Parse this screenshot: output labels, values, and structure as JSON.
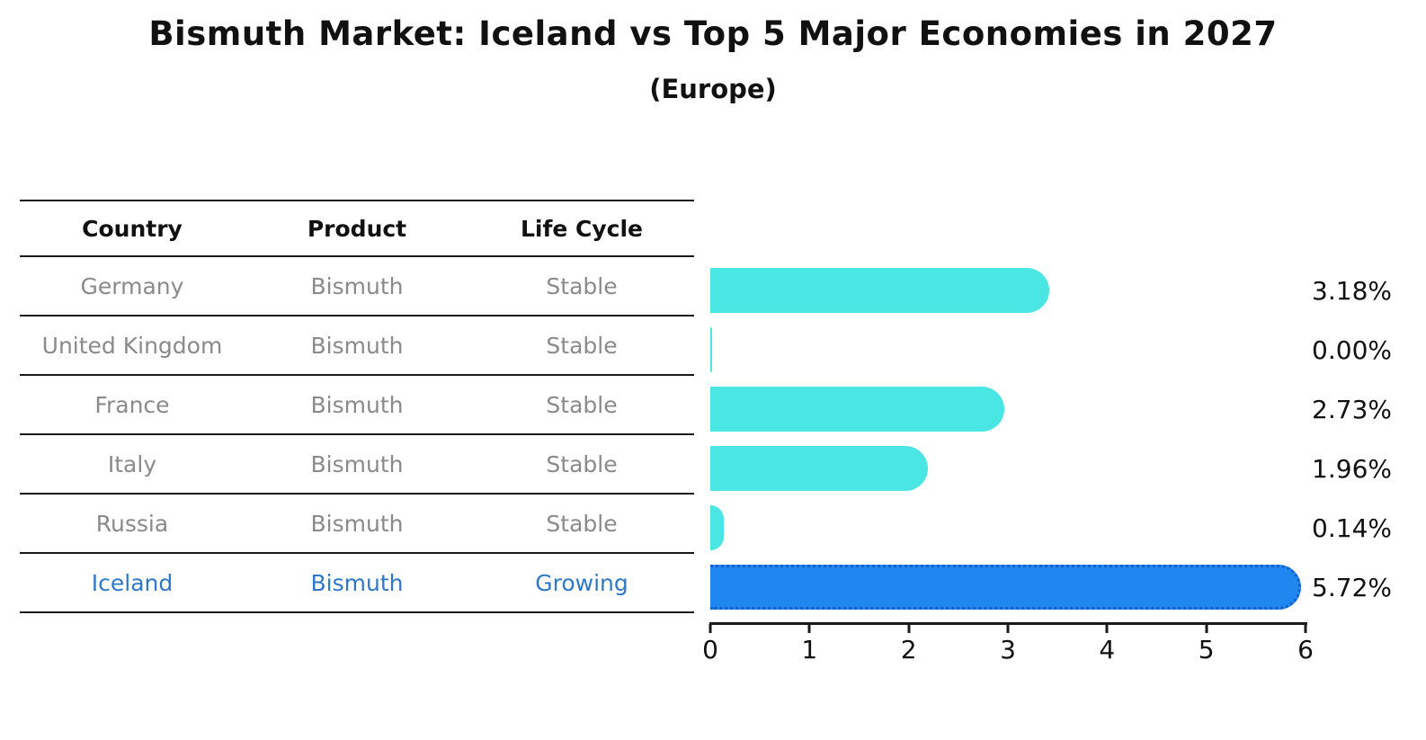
{
  "title": "Bismuth Market: Iceland vs Top 5 Major Economies in 2027",
  "subtitle": "(Europe)",
  "table": {
    "headers": [
      "Country",
      "Product",
      "Life Cycle"
    ],
    "rows": [
      {
        "country": "Germany",
        "product": "Bismuth",
        "life_cycle": "Stable",
        "highlight": false
      },
      {
        "country": "United Kingdom",
        "product": "Bismuth",
        "life_cycle": "Stable",
        "highlight": false
      },
      {
        "country": "France",
        "product": "Bismuth",
        "life_cycle": "Stable",
        "highlight": false
      },
      {
        "country": "Italy",
        "product": "Bismuth",
        "life_cycle": "Stable",
        "highlight": false
      },
      {
        "country": "Russia",
        "product": "Bismuth",
        "life_cycle": "Stable",
        "highlight": false
      },
      {
        "country": "Iceland",
        "product": "Bismuth",
        "life_cycle": "Growing",
        "highlight": true
      }
    ]
  },
  "chart_data": {
    "type": "bar",
    "orientation": "horizontal",
    "title": "Bismuth Market: Iceland vs Top 5 Major Economies in 2027",
    "subtitle": "(Europe)",
    "categories": [
      "Germany",
      "United Kingdom",
      "France",
      "Italy",
      "Russia",
      "Iceland"
    ],
    "values": [
      3.18,
      0.0,
      2.73,
      1.96,
      0.14,
      5.72
    ],
    "value_labels": [
      "3.18%",
      "0.00%",
      "2.73%",
      "1.96%",
      "0.14%",
      "5.72%"
    ],
    "xlabel": "",
    "ylabel": "",
    "xlim": [
      0,
      6
    ],
    "x_ticks": [
      "0",
      "1",
      "2",
      "3",
      "4",
      "5",
      "6"
    ],
    "grid": false,
    "legend": false,
    "highlight_index": 5,
    "bar_style": "rounded-cap",
    "highlight_style": "dotted-border"
  },
  "colors": {
    "bar_color": "#4AE6E3",
    "highlight_bar": "#2187F0",
    "highlight_border": "#1060C8",
    "highlight_text": "#2E78C9",
    "muted_text": "#8A8A8A",
    "axis_color": "#1A1A1A"
  }
}
